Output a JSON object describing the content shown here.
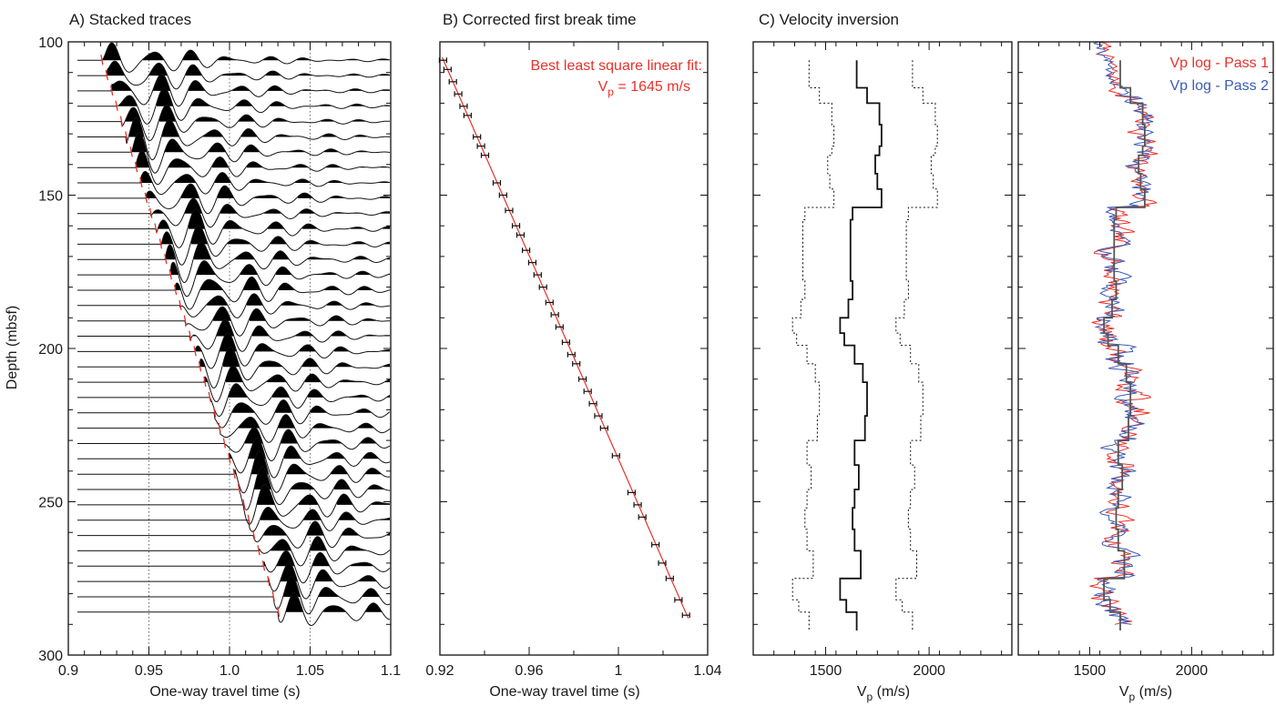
{
  "chart_data": [
    {
      "id": "A",
      "type": "line",
      "title": "A) Stacked traces",
      "xlabel": "One-way travel time (s)",
      "ylabel": "Depth (mbsf)",
      "xlim": [
        0.9,
        1.1
      ],
      "ylim": [
        100,
        300
      ],
      "xticks": [
        0.9,
        0.95,
        1.0,
        1.05,
        1.1
      ],
      "xtick_labels": [
        "0.9",
        "0.95",
        "1.0",
        "1.05",
        "1.1"
      ],
      "yticks": [
        100,
        150,
        200,
        250,
        300
      ],
      "ytick_labels": [
        "100",
        "150",
        "200",
        "250",
        "300"
      ],
      "grid_x": [
        0.95,
        1.0,
        1.05
      ],
      "trace_depths": [
        106,
        111,
        116,
        121,
        126,
        131,
        136,
        141,
        146,
        151,
        156,
        161,
        166,
        171,
        176,
        181,
        186,
        191,
        196,
        201,
        206,
        211,
        216,
        221,
        226,
        231,
        236,
        241,
        246,
        251,
        256,
        261,
        266,
        271,
        276,
        281,
        286
      ],
      "first_break_slope_s_per_m": 0.000608,
      "first_break_intercept_s": 0.8564,
      "trace_colors": {
        "trace": "#111111",
        "pick": "#e8312a"
      }
    },
    {
      "id": "B",
      "type": "scatter",
      "title": "B) Corrected first break time",
      "xlabel": "One-way travel time (s)",
      "xlim": [
        0.92,
        1.04
      ],
      "ylim": [
        100,
        300
      ],
      "xticks": [
        0.92,
        0.96,
        1.0,
        1.04
      ],
      "xtick_labels": [
        "0.92",
        "0.96",
        "1",
        "1.04"
      ],
      "points": [
        [
          0.9214,
          106
        ],
        [
          0.9234,
          109
        ],
        [
          0.9258,
          113
        ],
        [
          0.9282,
          117
        ],
        [
          0.9306,
          121
        ],
        [
          0.9324,
          124
        ],
        [
          0.9366,
          131
        ],
        [
          0.9384,
          134
        ],
        [
          0.9402,
          137
        ],
        [
          0.9455,
          146
        ],
        [
          0.9483,
          150
        ],
        [
          0.951,
          155
        ],
        [
          0.9541,
          160
        ],
        [
          0.9561,
          163
        ],
        [
          0.9586,
          168
        ],
        [
          0.9614,
          172
        ],
        [
          0.9638,
          176
        ],
        [
          0.9662,
          180
        ],
        [
          0.9691,
          185
        ],
        [
          0.9715,
          189
        ],
        [
          0.9736,
          193
        ],
        [
          0.9765,
          198
        ],
        [
          0.9789,
          202
        ],
        [
          0.9811,
          205
        ],
        [
          0.9839,
          210
        ],
        [
          0.9862,
          214
        ],
        [
          0.9886,
          218
        ],
        [
          0.991,
          222
        ],
        [
          0.9936,
          226
        ],
        [
          0.9989,
          235
        ],
        [
          1.0059,
          247
        ],
        [
          1.0086,
          251
        ],
        [
          1.0107,
          255
        ],
        [
          1.0166,
          264
        ],
        [
          1.0196,
          270
        ],
        [
          1.023,
          275
        ],
        [
          1.0269,
          282
        ],
        [
          1.0303,
          287
        ]
      ],
      "fit_line": {
        "x": [
          0.921,
          1.0313
        ],
        "y": [
          105,
          288
        ]
      },
      "annotation_line1": "Best least square linear fit:",
      "annotation_line2_prefix": "V",
      "annotation_line2_sub": "p",
      "annotation_line2_rest": " = 1645 m/s",
      "color_fit": "#e8312a"
    },
    {
      "id": "C",
      "type": "line",
      "title": "C) Velocity inversion",
      "xlabel_main": "V",
      "xlabel_sub": "p",
      "xlabel_rest": " (m/s)",
      "xlim": [
        1150,
        2400
      ],
      "ylim": [
        100,
        300
      ],
      "xticks": [
        1500,
        2000
      ],
      "xtick_labels": [
        "1500",
        "2000"
      ],
      "step_series": {
        "depth_edges": [
          106,
          115,
          120,
          127,
          134,
          137,
          143,
          148,
          154,
          158,
          167,
          178,
          184,
          190,
          195,
          199,
          205,
          211,
          222,
          230,
          238,
          246,
          252,
          259,
          266,
          275,
          282,
          286,
          292
        ],
        "velocity": [
          1650,
          1700,
          1760,
          1770,
          1760,
          1740,
          1750,
          1770,
          1630,
          1620,
          1620,
          1630,
          1610,
          1570,
          1590,
          1640,
          1680,
          1700,
          1690,
          1640,
          1660,
          1640,
          1630,
          1640,
          1670,
          1570,
          1600,
          1650
        ],
        "lower_bound_offset": 230,
        "upper_bound_offset": 270
      }
    },
    {
      "id": "D",
      "type": "line",
      "xlabel_main": "V",
      "xlabel_sub": "p",
      "xlabel_rest": " (m/s)",
      "xlim": [
        1150,
        2400
      ],
      "ylim": [
        100,
        300
      ],
      "xticks": [
        1500,
        2000
      ],
      "xtick_labels": [
        "1500",
        "2000"
      ],
      "series": [
        {
          "name": "Vp log - Pass 1",
          "color": "#e8312a",
          "seed": 7
        },
        {
          "name": "Vp log - Pass 2",
          "color": "#3a5bb8",
          "seed": 19
        }
      ],
      "legend_position": "top-right"
    }
  ]
}
